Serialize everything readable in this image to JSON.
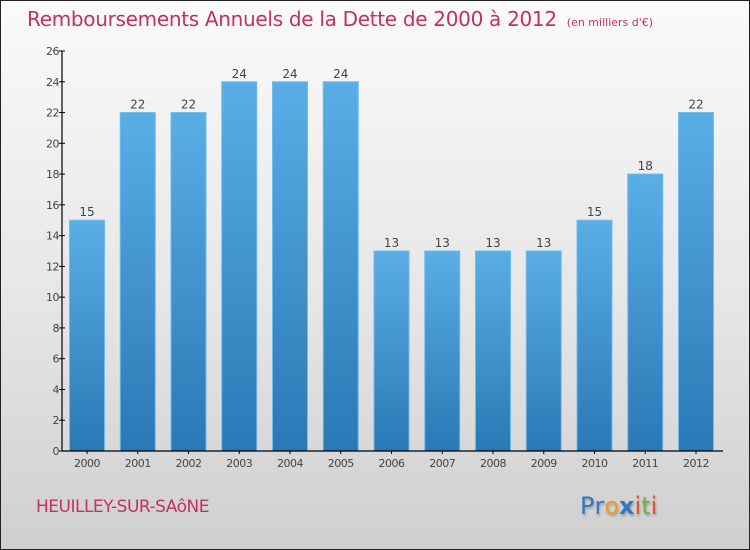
{
  "header": {
    "title": "Remboursements Annuels de la Dette de 2000 à 2012",
    "unit_note": "(en milliers d'€)"
  },
  "footer": {
    "commune": "HEUILLEY-SUR-SAôNE",
    "brand": {
      "letters": [
        {
          "ch": "P",
          "color": "#2f78c4"
        },
        {
          "ch": "r",
          "color": "#2f78c4"
        },
        {
          "ch": "o",
          "color": "#f29a1f"
        },
        {
          "ch": "x",
          "color": "#2f78c4"
        },
        {
          "ch": "i",
          "color": "#e8532b"
        },
        {
          "ch": "t",
          "color": "#6db33f"
        },
        {
          "ch": "i",
          "color": "#e8532b"
        }
      ]
    }
  },
  "colors": {
    "title": "#c0325f",
    "bar_top": "#5aaee6",
    "bar_bottom": "#2a78b5",
    "axis": "#000000",
    "label": "#444444"
  },
  "chart_data": {
    "type": "bar",
    "title": "Remboursements Annuels de la Dette de 2000 à 2012",
    "subtitle": "(en milliers d'€)",
    "xlabel": "",
    "ylabel": "",
    "categories": [
      "2000",
      "2001",
      "2002",
      "2003",
      "2004",
      "2005",
      "2006",
      "2007",
      "2008",
      "2009",
      "2010",
      "2011",
      "2012"
    ],
    "values": [
      15,
      22,
      22,
      24,
      24,
      24,
      13,
      13,
      13,
      13,
      15,
      18,
      22
    ],
    "data_labels": [
      "15",
      "22",
      "22",
      "24",
      "24",
      "24",
      "13",
      "13",
      "13",
      "13",
      "15",
      "18",
      "22"
    ],
    "ylim": [
      0,
      26
    ],
    "yticks": [
      0,
      2,
      4,
      6,
      8,
      10,
      12,
      14,
      16,
      18,
      20,
      22,
      24,
      26
    ],
    "grid": false,
    "legend": "none"
  }
}
